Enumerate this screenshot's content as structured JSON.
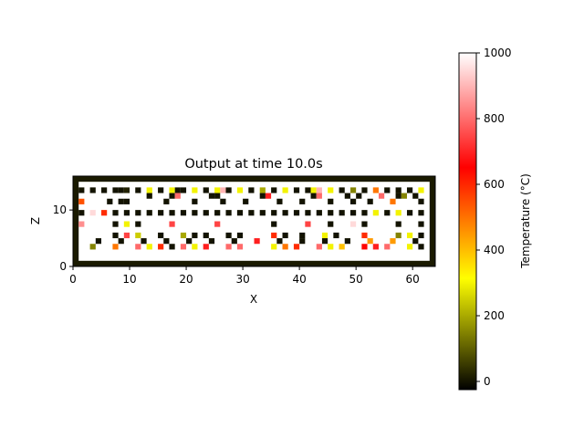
{
  "chart_data": {
    "type": "heatmap",
    "title": "Output at time 10.0s",
    "xlabel": "X",
    "ylabel": "Z",
    "xlim": [
      0,
      64
    ],
    "ylim": [
      0,
      16
    ],
    "x_ticks": [
      "0",
      "10",
      "20",
      "30",
      "40",
      "50",
      "60"
    ],
    "y_ticks": [
      "0",
      "10"
    ],
    "colorbar": {
      "label": "Temperature (°C)",
      "range": [
        -25,
        1000
      ],
      "ticks": [
        "0",
        "200",
        "400",
        "600",
        "800",
        "1000"
      ],
      "colormap": [
        "#000000",
        "#ffff00",
        "#ff0000",
        "#ffffff"
      ]
    },
    "border_color": "#1a1a00",
    "background_value": 1000,
    "marked_cells": [
      {
        "x": 1,
        "z": 13,
        "value": 0
      },
      {
        "x": 3,
        "z": 13,
        "value": 0
      },
      {
        "x": 5,
        "z": 13,
        "value": 0
      },
      {
        "x": 7,
        "z": 13,
        "value": 0
      },
      {
        "x": 8,
        "z": 13,
        "value": 0
      },
      {
        "x": 9,
        "z": 13,
        "value": 20
      },
      {
        "x": 11,
        "z": 13,
        "value": 0
      },
      {
        "x": 13,
        "z": 13,
        "value": 300
      },
      {
        "x": 15,
        "z": 13,
        "value": 0
      },
      {
        "x": 17,
        "z": 13,
        "value": 300
      },
      {
        "x": 18,
        "z": 13,
        "value": 0
      },
      {
        "x": 19,
        "z": 13,
        "value": 0
      },
      {
        "x": 21,
        "z": 13,
        "value": 300
      },
      {
        "x": 23,
        "z": 13,
        "value": 0
      },
      {
        "x": 25,
        "z": 13,
        "value": 300
      },
      {
        "x": 26,
        "z": 13,
        "value": 900
      },
      {
        "x": 27,
        "z": 13,
        "value": 0
      },
      {
        "x": 29,
        "z": 13,
        "value": 300
      },
      {
        "x": 31,
        "z": 13,
        "value": 0
      },
      {
        "x": 33,
        "z": 13,
        "value": 200
      },
      {
        "x": 35,
        "z": 13,
        "value": 0
      },
      {
        "x": 37,
        "z": 13,
        "value": 300
      },
      {
        "x": 39,
        "z": 13,
        "value": 0
      },
      {
        "x": 41,
        "z": 13,
        "value": 0
      },
      {
        "x": 42,
        "z": 13,
        "value": 300
      },
      {
        "x": 43,
        "z": 13,
        "value": 900
      },
      {
        "x": 45,
        "z": 13,
        "value": 300
      },
      {
        "x": 47,
        "z": 13,
        "value": 0
      },
      {
        "x": 49,
        "z": 13,
        "value": 150
      },
      {
        "x": 51,
        "z": 13,
        "value": 0
      },
      {
        "x": 53,
        "z": 13,
        "value": 500
      },
      {
        "x": 55,
        "z": 13,
        "value": 0
      },
      {
        "x": 57,
        "z": 13,
        "value": 0
      },
      {
        "x": 59,
        "z": 13,
        "value": 0
      },
      {
        "x": 61,
        "z": 13,
        "value": 300
      },
      {
        "x": 13,
        "z": 12,
        "value": 0
      },
      {
        "x": 17,
        "z": 12,
        "value": 0
      },
      {
        "x": 18,
        "z": 12,
        "value": 800
      },
      {
        "x": 24,
        "z": 12,
        "value": 0
      },
      {
        "x": 25,
        "z": 12,
        "value": 0
      },
      {
        "x": 33,
        "z": 12,
        "value": 0
      },
      {
        "x": 34,
        "z": 12,
        "value": 700
      },
      {
        "x": 42,
        "z": 12,
        "value": 0
      },
      {
        "x": 43,
        "z": 12,
        "value": 800
      },
      {
        "x": 48,
        "z": 12,
        "value": 0
      },
      {
        "x": 50,
        "z": 12,
        "value": 0
      },
      {
        "x": 54,
        "z": 12,
        "value": 800
      },
      {
        "x": 57,
        "z": 12,
        "value": 0
      },
      {
        "x": 58,
        "z": 12,
        "value": 150
      },
      {
        "x": 60,
        "z": 12,
        "value": 0
      },
      {
        "x": 1,
        "z": 11,
        "value": 550
      },
      {
        "x": 6,
        "z": 11,
        "value": 0
      },
      {
        "x": 8,
        "z": 11,
        "value": 0
      },
      {
        "x": 9,
        "z": 11,
        "value": 0
      },
      {
        "x": 16,
        "z": 11,
        "value": 0
      },
      {
        "x": 21,
        "z": 11,
        "value": 0
      },
      {
        "x": 26,
        "z": 11,
        "value": 0
      },
      {
        "x": 30,
        "z": 11,
        "value": 0
      },
      {
        "x": 36,
        "z": 11,
        "value": 0
      },
      {
        "x": 40,
        "z": 11,
        "value": 0
      },
      {
        "x": 45,
        "z": 11,
        "value": 0
      },
      {
        "x": 49,
        "z": 11,
        "value": 0
      },
      {
        "x": 52,
        "z": 11,
        "value": 0
      },
      {
        "x": 56,
        "z": 11,
        "value": 500
      },
      {
        "x": 61,
        "z": 11,
        "value": 0
      },
      {
        "x": 1,
        "z": 9,
        "value": 0
      },
      {
        "x": 3,
        "z": 9,
        "value": 950
      },
      {
        "x": 5,
        "z": 9,
        "value": 600
      },
      {
        "x": 7,
        "z": 9,
        "value": 0
      },
      {
        "x": 9,
        "z": 9,
        "value": 0
      },
      {
        "x": 11,
        "z": 9,
        "value": 0
      },
      {
        "x": 13,
        "z": 9,
        "value": 0
      },
      {
        "x": 15,
        "z": 9,
        "value": 0
      },
      {
        "x": 17,
        "z": 9,
        "value": 0
      },
      {
        "x": 19,
        "z": 9,
        "value": 0
      },
      {
        "x": 21,
        "z": 9,
        "value": 0
      },
      {
        "x": 23,
        "z": 9,
        "value": 0
      },
      {
        "x": 25,
        "z": 9,
        "value": 0
      },
      {
        "x": 27,
        "z": 9,
        "value": 0
      },
      {
        "x": 29,
        "z": 9,
        "value": 0
      },
      {
        "x": 31,
        "z": 9,
        "value": 0
      },
      {
        "x": 33,
        "z": 9,
        "value": 0
      },
      {
        "x": 35,
        "z": 9,
        "value": 0
      },
      {
        "x": 37,
        "z": 9,
        "value": 0
      },
      {
        "x": 39,
        "z": 9,
        "value": 0
      },
      {
        "x": 41,
        "z": 9,
        "value": 0
      },
      {
        "x": 43,
        "z": 9,
        "value": 0
      },
      {
        "x": 45,
        "z": 9,
        "value": 0
      },
      {
        "x": 47,
        "z": 9,
        "value": 0
      },
      {
        "x": 49,
        "z": 9,
        "value": 0
      },
      {
        "x": 51,
        "z": 9,
        "value": 0
      },
      {
        "x": 53,
        "z": 9,
        "value": 300
      },
      {
        "x": 55,
        "z": 9,
        "value": 0
      },
      {
        "x": 57,
        "z": 9,
        "value": 300
      },
      {
        "x": 59,
        "z": 9,
        "value": 0
      },
      {
        "x": 61,
        "z": 9,
        "value": 0
      },
      {
        "x": 1,
        "z": 7,
        "value": 850
      },
      {
        "x": 7,
        "z": 7,
        "value": 0
      },
      {
        "x": 9,
        "z": 7,
        "value": 300
      },
      {
        "x": 11,
        "z": 7,
        "value": 0
      },
      {
        "x": 17,
        "z": 7,
        "value": 750
      },
      {
        "x": 25,
        "z": 7,
        "value": 750
      },
      {
        "x": 35,
        "z": 7,
        "value": 0
      },
      {
        "x": 41,
        "z": 7,
        "value": 750
      },
      {
        "x": 45,
        "z": 7,
        "value": 0
      },
      {
        "x": 49,
        "z": 7,
        "value": 950
      },
      {
        "x": 51,
        "z": 7,
        "value": 0
      },
      {
        "x": 57,
        "z": 7,
        "value": 0
      },
      {
        "x": 61,
        "z": 7,
        "value": 0
      },
      {
        "x": 7,
        "z": 5,
        "value": 0
      },
      {
        "x": 9,
        "z": 5,
        "value": 750
      },
      {
        "x": 11,
        "z": 5,
        "value": 250
      },
      {
        "x": 15,
        "z": 5,
        "value": 0
      },
      {
        "x": 19,
        "z": 5,
        "value": 200
      },
      {
        "x": 21,
        "z": 5,
        "value": 0
      },
      {
        "x": 23,
        "z": 5,
        "value": 0
      },
      {
        "x": 27,
        "z": 5,
        "value": 0
      },
      {
        "x": 29,
        "z": 5,
        "value": 0
      },
      {
        "x": 35,
        "z": 5,
        "value": 600
      },
      {
        "x": 37,
        "z": 5,
        "value": 0
      },
      {
        "x": 40,
        "z": 5,
        "value": 0
      },
      {
        "x": 44,
        "z": 5,
        "value": 300
      },
      {
        "x": 46,
        "z": 5,
        "value": 0
      },
      {
        "x": 51,
        "z": 5,
        "value": 600
      },
      {
        "x": 57,
        "z": 5,
        "value": 150
      },
      {
        "x": 59,
        "z": 5,
        "value": 300
      },
      {
        "x": 61,
        "z": 5,
        "value": 0
      },
      {
        "x": 4,
        "z": 4,
        "value": 0
      },
      {
        "x": 8,
        "z": 4,
        "value": 0
      },
      {
        "x": 12,
        "z": 4,
        "value": 0
      },
      {
        "x": 16,
        "z": 4,
        "value": 0
      },
      {
        "x": 20,
        "z": 4,
        "value": 0
      },
      {
        "x": 24,
        "z": 4,
        "value": 0
      },
      {
        "x": 28,
        "z": 4,
        "value": 0
      },
      {
        "x": 32,
        "z": 4,
        "value": 700
      },
      {
        "x": 36,
        "z": 4,
        "value": 0
      },
      {
        "x": 40,
        "z": 4,
        "value": 0
      },
      {
        "x": 44,
        "z": 4,
        "value": 0
      },
      {
        "x": 48,
        "z": 4,
        "value": 0
      },
      {
        "x": 52,
        "z": 4,
        "value": 450
      },
      {
        "x": 56,
        "z": 4,
        "value": 450
      },
      {
        "x": 60,
        "z": 4,
        "value": 0
      },
      {
        "x": 3,
        "z": 3,
        "value": 150
      },
      {
        "x": 7,
        "z": 3,
        "value": 500
      },
      {
        "x": 11,
        "z": 3,
        "value": 800
      },
      {
        "x": 13,
        "z": 3,
        "value": 300
      },
      {
        "x": 15,
        "z": 3,
        "value": 600
      },
      {
        "x": 17,
        "z": 3,
        "value": 0
      },
      {
        "x": 19,
        "z": 3,
        "value": 800
      },
      {
        "x": 21,
        "z": 3,
        "value": 300
      },
      {
        "x": 23,
        "z": 3,
        "value": 700
      },
      {
        "x": 27,
        "z": 3,
        "value": 800
      },
      {
        "x": 29,
        "z": 3,
        "value": 800
      },
      {
        "x": 35,
        "z": 3,
        "value": 300
      },
      {
        "x": 37,
        "z": 3,
        "value": 500
      },
      {
        "x": 39,
        "z": 3,
        "value": 600
      },
      {
        "x": 43,
        "z": 3,
        "value": 800
      },
      {
        "x": 45,
        "z": 3,
        "value": 300
      },
      {
        "x": 47,
        "z": 3,
        "value": 400
      },
      {
        "x": 51,
        "z": 3,
        "value": 650
      },
      {
        "x": 53,
        "z": 3,
        "value": 700
      },
      {
        "x": 55,
        "z": 3,
        "value": 800
      },
      {
        "x": 59,
        "z": 3,
        "value": 300
      },
      {
        "x": 61,
        "z": 3,
        "value": 0
      }
    ]
  }
}
